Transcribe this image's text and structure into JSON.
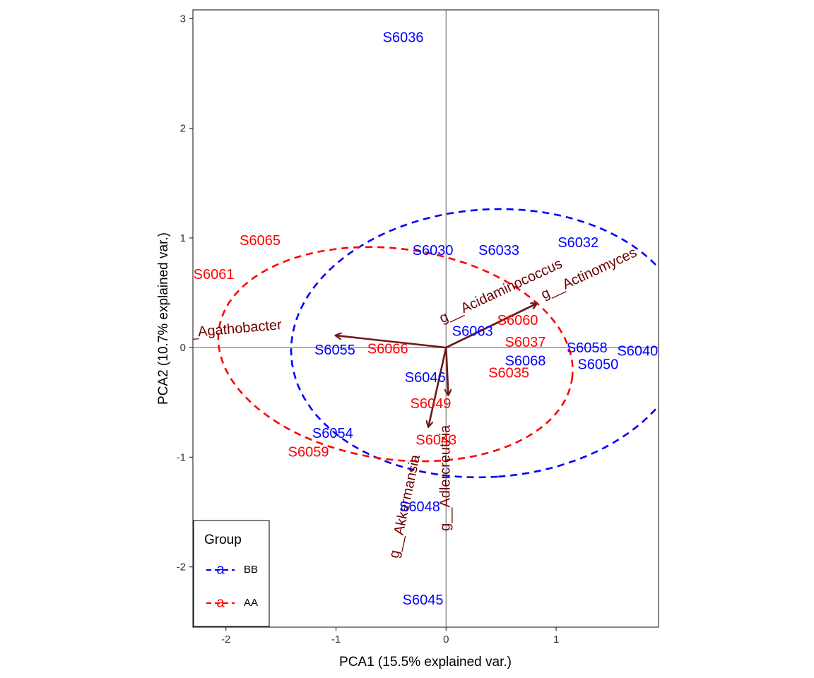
{
  "chart_data": {
    "type": "scatter",
    "subtype": "pca-biplot",
    "xlabel": "PCA1 (15.5% explained var.)",
    "ylabel": "PCA2 (10.7% explained var.)",
    "xlim": [
      -2.3,
      1.93
    ],
    "ylim": [
      -2.55,
      3.08
    ],
    "x_ticks": [
      -2,
      -1,
      0,
      1
    ],
    "x_tick_labels": [
      "-2",
      "-1",
      "0",
      "1"
    ],
    "y_ticks": [
      -2,
      -1,
      0,
      1,
      2,
      3
    ],
    "y_tick_labels": [
      "-2",
      "-1",
      "0",
      "1",
      "2",
      "3"
    ],
    "grid": false,
    "legend": {
      "title": "Group",
      "position": "bottom-left",
      "items": [
        {
          "group": "BB",
          "symbol": "a",
          "label": "BB",
          "color": "#0000ff"
        },
        {
          "group": "AA",
          "symbol": "a",
          "label": "AA",
          "color": "#ff0000"
        }
      ]
    },
    "colors": {
      "BB": "#0000ff",
      "AA": "#ff0000",
      "arrow": "#6b1a1a",
      "variable_text": "#6b0000"
    },
    "points": [
      {
        "label": "S6036",
        "group": "BB",
        "x": -0.39,
        "y": 2.82
      },
      {
        "label": "S6030",
        "group": "BB",
        "x": -0.12,
        "y": 0.88
      },
      {
        "label": "S6033",
        "group": "BB",
        "x": 0.48,
        "y": 0.88
      },
      {
        "label": "S6032",
        "group": "BB",
        "x": 1.2,
        "y": 0.95
      },
      {
        "label": "S6063",
        "group": "BB",
        "x": 0.24,
        "y": 0.14
      },
      {
        "label": "S6055",
        "group": "BB",
        "x": -1.01,
        "y": -0.03
      },
      {
        "label": "S6058",
        "group": "BB",
        "x": 1.28,
        "y": -0.01
      },
      {
        "label": "S6040",
        "group": "BB",
        "x": 1.74,
        "y": -0.04
      },
      {
        "label": "S6068",
        "group": "BB",
        "x": 0.72,
        "y": -0.13
      },
      {
        "label": "S6050",
        "group": "BB",
        "x": 1.38,
        "y": -0.16
      },
      {
        "label": "S6046",
        "group": "BB",
        "x": -0.19,
        "y": -0.28
      },
      {
        "label": "S6054",
        "group": "BB",
        "x": -1.03,
        "y": -0.79
      },
      {
        "label": "S6048",
        "group": "BB",
        "x": -0.24,
        "y": -1.46
      },
      {
        "label": "S6045",
        "group": "BB",
        "x": -0.21,
        "y": -2.31
      },
      {
        "label": "S6065",
        "group": "AA",
        "x": -1.69,
        "y": 0.97
      },
      {
        "label": "S6061",
        "group": "AA",
        "x": -2.11,
        "y": 0.66
      },
      {
        "label": "S6060",
        "group": "AA",
        "x": 0.65,
        "y": 0.24
      },
      {
        "label": "S6037",
        "group": "AA",
        "x": 0.72,
        "y": 0.04
      },
      {
        "label": "S6066",
        "group": "AA",
        "x": -0.53,
        "y": -0.02
      },
      {
        "label": "S6035",
        "group": "AA",
        "x": 0.57,
        "y": -0.24
      },
      {
        "label": "S6049",
        "group": "AA",
        "x": -0.14,
        "y": -0.52
      },
      {
        "label": "S6043",
        "group": "AA",
        "x": -0.09,
        "y": -0.85
      },
      {
        "label": "S6059",
        "group": "AA",
        "x": -1.25,
        "y": -0.96
      }
    ],
    "ellipses": [
      {
        "group": "BB",
        "cx": 0.39,
        "cy": 0.04,
        "rx": 1.22,
        "ry": 1.8,
        "angle_deg": -86,
        "style": "dashed"
      },
      {
        "group": "AA",
        "cx": -0.46,
        "cy": -0.06,
        "rx": 1.62,
        "ry": 0.96,
        "angle_deg": -8,
        "style": "dashed"
      }
    ],
    "variables": [
      {
        "name": "g__Agathobacter",
        "x": -1.0,
        "y": 0.11,
        "label_x": -1.98,
        "label_y": 0.16,
        "label_angle": -5
      },
      {
        "name": "g__Acidaminococcus",
        "x": 0.82,
        "y": 0.4,
        "label_x": 0.5,
        "label_y": 0.51,
        "label_angle": -25
      },
      {
        "name": "g__Actinomyces",
        "x": 0.82,
        "y": 0.4,
        "label_x": 1.3,
        "label_y": 0.67,
        "label_angle": -25
      },
      {
        "name": "g__Akkermansia",
        "x": -0.16,
        "y": -0.72,
        "label_x": -0.37,
        "label_y": -1.45,
        "label_angle": -78
      },
      {
        "name": "g__Adlercreutzia",
        "x": 0.02,
        "y": -0.43,
        "label_x": 0.0,
        "label_y": -1.19,
        "label_angle": -90
      }
    ]
  }
}
